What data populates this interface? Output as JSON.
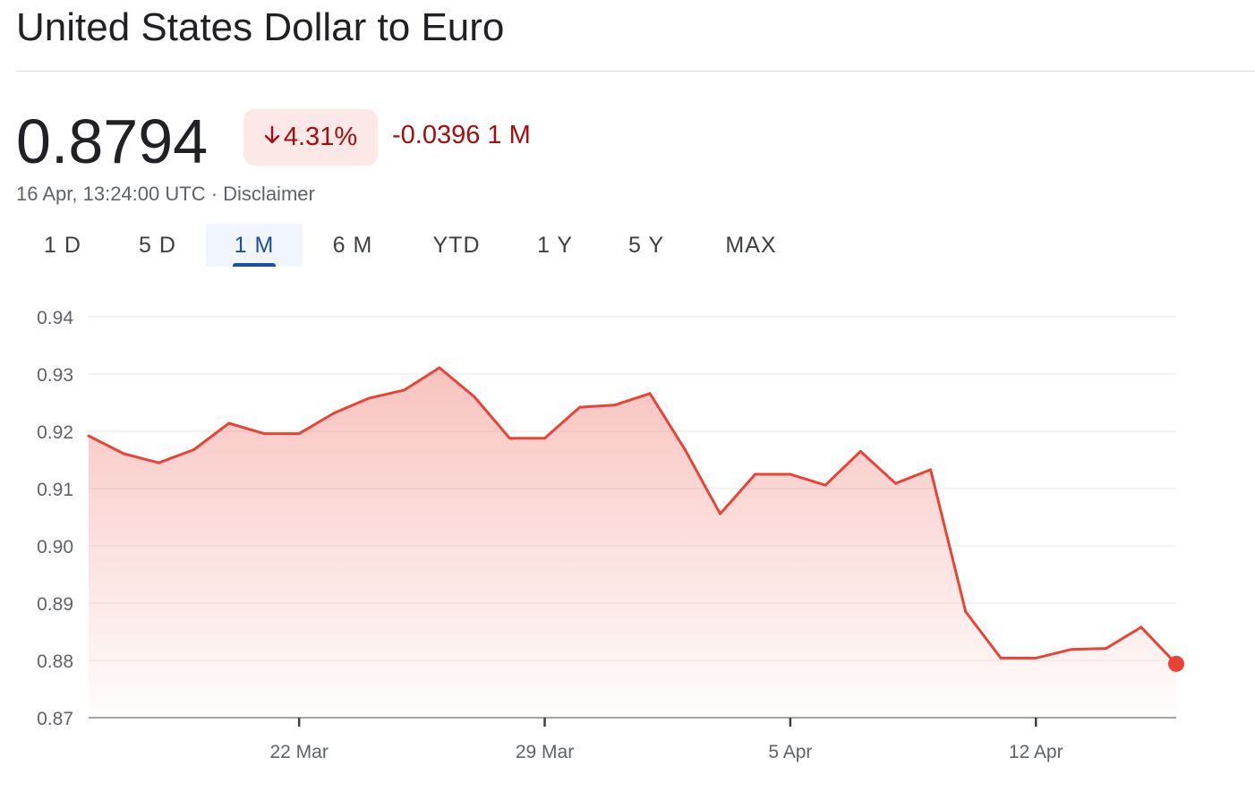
{
  "header": {
    "title": "United States Dollar to Euro",
    "price": "0.8794",
    "change_percent": "4.31%",
    "change_abs": "-0.0396 1 M",
    "timestamp": "16 Apr, 13:24:00 UTC",
    "separator": "·",
    "disclaimer": "Disclaimer"
  },
  "tabs": [
    {
      "label": "1 D"
    },
    {
      "label": "5 D"
    },
    {
      "label": "1 M",
      "active": true
    },
    {
      "label": "6 M"
    },
    {
      "label": "YTD"
    },
    {
      "label": "1 Y"
    },
    {
      "label": "5 Y"
    },
    {
      "label": "MAX"
    }
  ],
  "colors": {
    "line": "#ea4335",
    "negative_text": "#a50e0e",
    "badge_bg": "#fce8e6",
    "active_tab": "#1a4fa3"
  },
  "chart_data": {
    "type": "area",
    "ylim": [
      0.87,
      0.94
    ],
    "yticks": [
      "0.94",
      "0.93",
      "0.92",
      "0.91",
      "0.90",
      "0.89",
      "0.88",
      "0.87"
    ],
    "x_tick_labels": [
      "22 Mar",
      "29 Mar",
      "5 Apr",
      "12 Apr"
    ],
    "x_tick_index": [
      6,
      13,
      20,
      27
    ],
    "values": [
      0.9192,
      0.9161,
      0.9145,
      0.9168,
      0.9214,
      0.9196,
      0.9196,
      0.9232,
      0.9258,
      0.9272,
      0.9311,
      0.926,
      0.9188,
      0.9188,
      0.9242,
      0.9246,
      0.9266,
      0.9168,
      0.9056,
      0.9125,
      0.9125,
      0.9106,
      0.9165,
      0.9109,
      0.9133,
      0.8885,
      0.8804,
      0.8804,
      0.8819,
      0.8821,
      0.8858,
      0.8794
    ],
    "grid": true,
    "last_point_marker": true
  }
}
